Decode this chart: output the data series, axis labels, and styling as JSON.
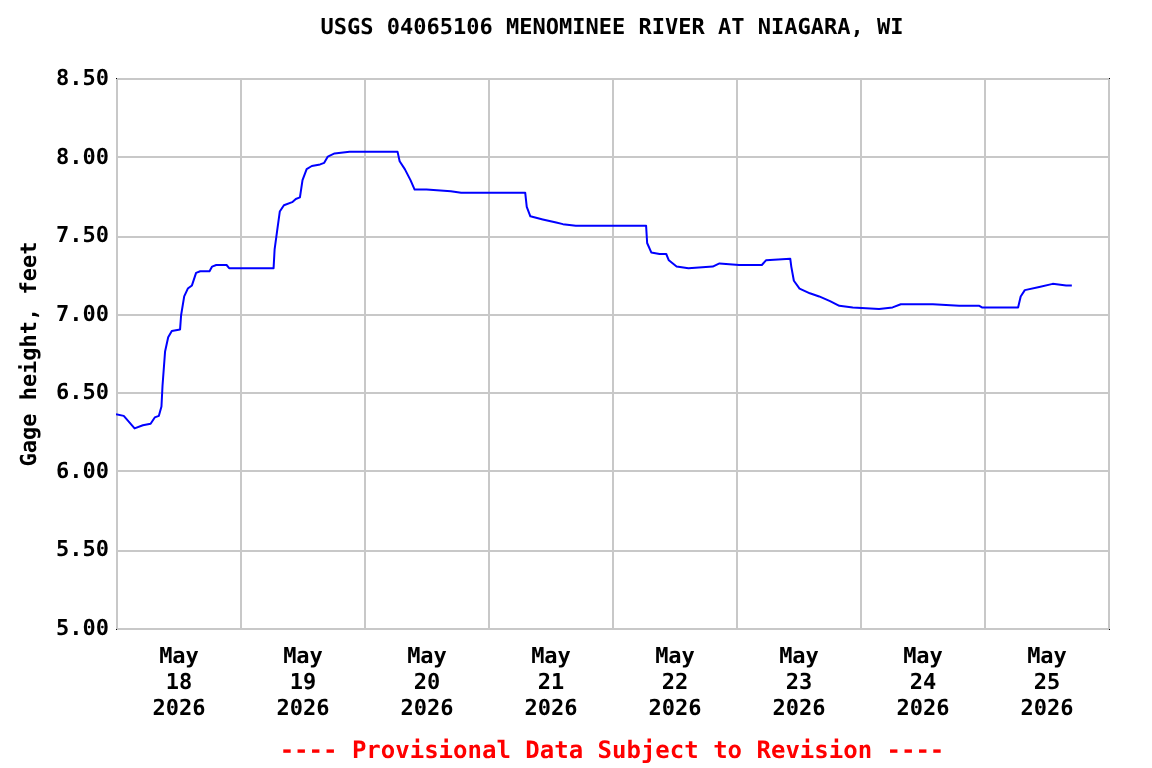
{
  "chart_data": {
    "type": "line",
    "title": "USGS 04065106 MENOMINEE RIVER AT NIAGARA, WI",
    "ylabel": "Gage height, feet",
    "annotations": [
      "---- Provisional Data Subject to Revision ----"
    ],
    "xlim": [
      "2026-05-18T00:00",
      "2026-05-26T00:00"
    ],
    "xticks": [
      {
        "value": "2026-05-18T00:00",
        "label": null
      },
      {
        "value": "2026-05-18T12:00",
        "label": "May\n18\n2026"
      },
      {
        "value": "2026-05-19T00:00",
        "label": null
      },
      {
        "value": "2026-05-19T12:00",
        "label": "May\n19\n2026"
      },
      {
        "value": "2026-05-20T00:00",
        "label": null
      },
      {
        "value": "2026-05-20T12:00",
        "label": "May\n20\n2026"
      },
      {
        "value": "2026-05-21T00:00",
        "label": null
      },
      {
        "value": "2026-05-21T12:00",
        "label": "May\n21\n2026"
      },
      {
        "value": "2026-05-22T00:00",
        "label": null
      },
      {
        "value": "2026-05-22T12:00",
        "label": "May\n22\n2026"
      },
      {
        "value": "2026-05-23T00:00",
        "label": null
      },
      {
        "value": "2026-05-23T12:00",
        "label": "May\n23\n2026"
      },
      {
        "value": "2026-05-24T00:00",
        "label": null
      },
      {
        "value": "2026-05-24T12:00",
        "label": "May\n24\n2026"
      },
      {
        "value": "2026-05-25T00:00",
        "label": null
      },
      {
        "value": "2026-05-25T12:00",
        "label": "May\n25\n2026"
      },
      {
        "value": "2026-05-26T00:00",
        "label": null
      }
    ],
    "ylim": [
      5.0,
      8.5
    ],
    "yticks": [
      {
        "value": 5.0,
        "label": "5.00"
      },
      {
        "value": 5.5,
        "label": "5.50"
      },
      {
        "value": 6.0,
        "label": "6.00"
      },
      {
        "value": 6.5,
        "label": "6.50"
      },
      {
        "value": 7.0,
        "label": "7.00"
      },
      {
        "value": 7.5,
        "label": "7.50"
      },
      {
        "value": 8.0,
        "label": "8.00"
      },
      {
        "value": 8.5,
        "label": "8.50"
      }
    ],
    "grid": true,
    "marker": "none",
    "line_style": "solid",
    "series": [
      {
        "color": "#0000ff",
        "x": [
          "2026-05-18T00:00",
          "2026-05-18T01:30",
          "2026-05-18T02:18",
          "2026-05-18T03:36",
          "2026-05-18T05:12",
          "2026-05-18T06:42",
          "2026-05-18T07:30",
          "2026-05-18T08:18",
          "2026-05-18T08:48",
          "2026-05-18T09:00",
          "2026-05-18T09:30",
          "2026-05-18T10:06",
          "2026-05-18T10:48",
          "2026-05-18T12:24",
          "2026-05-18T12:36",
          "2026-05-18T13:12",
          "2026-05-18T13:54",
          "2026-05-18T14:42",
          "2026-05-18T15:30",
          "2026-05-18T16:18",
          "2026-05-18T18:06",
          "2026-05-18T18:36",
          "2026-05-18T19:24",
          "2026-05-18T21:24",
          "2026-05-18T21:54",
          "2026-05-19T06:30",
          "2026-05-19T06:42",
          "2026-05-19T07:12",
          "2026-05-19T07:42",
          "2026-05-19T08:30",
          "2026-05-19T10:06",
          "2026-05-19T10:48",
          "2026-05-19T11:36",
          "2026-05-19T12:06",
          "2026-05-19T12:54",
          "2026-05-19T13:54",
          "2026-05-19T15:30",
          "2026-05-19T16:18",
          "2026-05-19T17:00",
          "2026-05-19T18:18",
          "2026-05-19T21:12",
          "2026-05-19T23:42",
          "2026-05-20T06:30",
          "2026-05-20T06:54",
          "2026-05-20T07:54",
          "2026-05-20T09:00",
          "2026-05-20T09:48",
          "2026-05-20T12:06",
          "2026-05-20T16:48",
          "2026-05-20T18:48",
          "2026-05-20T21:24",
          "2026-05-21T01:30",
          "2026-05-21T07:12",
          "2026-05-21T07:30",
          "2026-05-21T08:12",
          "2026-05-21T10:36",
          "2026-05-21T13:12",
          "2026-05-21T14:30",
          "2026-05-21T17:00",
          "2026-05-21T19:36",
          "2026-05-22T00:00",
          "2026-05-22T06:36",
          "2026-05-22T06:48",
          "2026-05-22T07:36",
          "2026-05-22T09:12",
          "2026-05-22T10:30",
          "2026-05-22T11:00",
          "2026-05-22T12:30",
          "2026-05-22T14:48",
          "2026-05-22T19:30",
          "2026-05-22T20:48",
          "2026-05-23T00:36",
          "2026-05-23T05:00",
          "2026-05-23T05:48",
          "2026-05-23T10:30",
          "2026-05-23T10:42",
          "2026-05-23T11:12",
          "2026-05-23T12:18",
          "2026-05-23T14:18",
          "2026-05-23T16:06",
          "2026-05-23T18:12",
          "2026-05-23T20:00",
          "2026-05-23T22:36",
          "2026-05-24T03:42",
          "2026-05-24T06:18",
          "2026-05-24T07:54",
          "2026-05-24T14:06",
          "2026-05-24T19:12",
          "2026-05-24T23:06",
          "2026-05-24T23:36",
          "2026-05-25T06:36",
          "2026-05-25T07:06",
          "2026-05-25T07:54",
          "2026-05-25T10:42",
          "2026-05-25T13:18",
          "2026-05-25T15:54",
          "2026-05-25T17:00"
        ],
        "values": [
          6.36,
          6.35,
          6.32,
          6.27,
          6.29,
          6.3,
          6.34,
          6.35,
          6.41,
          6.54,
          6.76,
          6.85,
          6.89,
          6.9,
          6.99,
          7.11,
          7.16,
          7.18,
          7.26,
          7.27,
          7.27,
          7.3,
          7.31,
          7.31,
          7.29,
          7.29,
          7.41,
          7.53,
          7.65,
          7.69,
          7.71,
          7.73,
          7.74,
          7.85,
          7.92,
          7.94,
          7.95,
          7.96,
          8.0,
          8.02,
          8.03,
          8.03,
          8.03,
          7.97,
          7.92,
          7.85,
          7.79,
          7.79,
          7.78,
          7.77,
          7.77,
          7.77,
          7.77,
          7.68,
          7.62,
          7.6,
          7.58,
          7.57,
          7.56,
          7.56,
          7.56,
          7.56,
          7.45,
          7.39,
          7.38,
          7.38,
          7.34,
          7.3,
          7.29,
          7.3,
          7.32,
          7.31,
          7.31,
          7.34,
          7.35,
          7.3,
          7.21,
          7.16,
          7.13,
          7.11,
          7.08,
          7.05,
          7.04,
          7.03,
          7.04,
          7.06,
          7.06,
          7.05,
          7.05,
          7.04,
          7.04,
          7.11,
          7.15,
          7.17,
          7.19,
          7.18,
          7.18
        ]
      }
    ]
  }
}
